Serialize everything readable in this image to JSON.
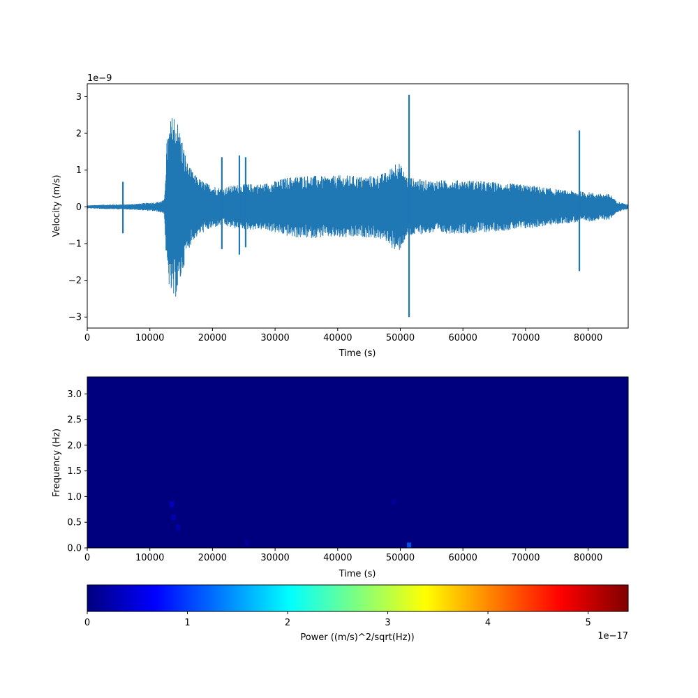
{
  "chart_data": [
    {
      "type": "line",
      "title": "",
      "xlabel": "Time (s)",
      "ylabel": "Velocity (m/s)",
      "offset_label": "1e−9",
      "xlim": [
        0,
        86400
      ],
      "ylim": [
        -3.3,
        3.35
      ],
      "xticks": [
        0,
        10000,
        20000,
        30000,
        40000,
        50000,
        60000,
        70000,
        80000
      ],
      "xtick_labels": [
        "0",
        "10000",
        "20000",
        "30000",
        "40000",
        "50000",
        "60000",
        "70000",
        "80000"
      ],
      "yticks": [
        -3,
        -2,
        -1,
        0,
        1,
        2,
        3
      ],
      "ytick_labels": [
        "−3",
        "−2",
        "−1",
        "0",
        "1",
        "2",
        "3"
      ],
      "line_color": "#1f77b4",
      "envelope": {
        "x": [
          0,
          2000,
          5000,
          5500,
          6000,
          8000,
          11000,
          12300,
          12700,
          13200,
          13800,
          14500,
          15200,
          16000,
          17000,
          18000,
          19000,
          20500,
          21500,
          22500,
          24000,
          26000,
          28000,
          30000,
          32000,
          34000,
          36000,
          38000,
          40000,
          42000,
          44000,
          46000,
          48000,
          49500,
          51000,
          52000,
          54000,
          56000,
          58000,
          60000,
          62000,
          64000,
          66000,
          68000,
          70000,
          72000,
          74000,
          76000,
          78000,
          80000,
          82000,
          83500,
          84500,
          86400
        ],
        "amp": [
          0.03,
          0.05,
          0.06,
          0.06,
          0.06,
          0.08,
          0.12,
          0.18,
          1.8,
          2.3,
          2.6,
          2.3,
          1.8,
          1.2,
          0.9,
          0.75,
          0.65,
          0.55,
          0.5,
          0.55,
          0.6,
          0.62,
          0.62,
          0.7,
          0.8,
          0.85,
          0.85,
          0.82,
          0.85,
          0.85,
          0.82,
          0.85,
          0.95,
          1.3,
          0.85,
          0.78,
          0.72,
          0.72,
          0.72,
          0.72,
          0.72,
          0.68,
          0.65,
          0.62,
          0.6,
          0.55,
          0.5,
          0.45,
          0.42,
          0.4,
          0.35,
          0.35,
          0.15,
          0.05
        ]
      },
      "spikes": [
        {
          "x": 5700,
          "top": 0.68,
          "bottom": -0.72
        },
        {
          "x": 21500,
          "top": 1.35,
          "bottom": -1.15
        },
        {
          "x": 24300,
          "top": 1.4,
          "bottom": -1.3
        },
        {
          "x": 25300,
          "top": 1.35,
          "bottom": -1.1
        },
        {
          "x": 51400,
          "top": 3.05,
          "bottom": -3.0
        },
        {
          "x": 78600,
          "top": 2.08,
          "bottom": -1.75
        }
      ]
    },
    {
      "type": "heatmap",
      "title": "",
      "xlabel": "Time (s)",
      "ylabel": "Frequency (Hz)",
      "xlim": [
        0,
        86400
      ],
      "ylim": [
        0,
        3.33
      ],
      "xticks": [
        0,
        10000,
        20000,
        30000,
        40000,
        50000,
        60000,
        70000,
        80000
      ],
      "xtick_labels": [
        "0",
        "10000",
        "20000",
        "30000",
        "40000",
        "50000",
        "60000",
        "70000",
        "80000"
      ],
      "yticks": [
        0.0,
        0.5,
        1.0,
        1.5,
        2.0,
        2.5,
        3.0
      ],
      "ytick_labels": [
        "0.0",
        "0.5",
        "1.0",
        "1.5",
        "2.0",
        "2.5",
        "3.0"
      ],
      "background_color": "#00007f",
      "hotspots": [
        {
          "t": 13500,
          "f": 0.85,
          "value": 4.5e-18
        },
        {
          "t": 13800,
          "f": 0.6,
          "value": 3.5e-18
        },
        {
          "t": 14500,
          "f": 0.4,
          "value": 3e-18
        },
        {
          "t": 49000,
          "f": 0.9,
          "value": 2e-18
        },
        {
          "t": 51400,
          "f": 0.05,
          "value": 1.2e-17
        },
        {
          "t": 25500,
          "f": 0.1,
          "value": 2e-18
        }
      ]
    },
    {
      "type": "colorbar",
      "label": "Power ((m/s)^2/sqrt(Hz))",
      "offset_label": "1e−17",
      "range": [
        0,
        5.4
      ],
      "ticks": [
        0,
        1,
        2,
        3,
        4,
        5
      ],
      "tick_labels": [
        "0",
        "1",
        "2",
        "3",
        "4",
        "5"
      ],
      "colormap": "jet",
      "colormap_stops": [
        "#00007f",
        "#0000ff",
        "#007fff",
        "#00ffff",
        "#7fff7f",
        "#ffff00",
        "#ff7f00",
        "#ff0000",
        "#7f0000"
      ]
    }
  ]
}
